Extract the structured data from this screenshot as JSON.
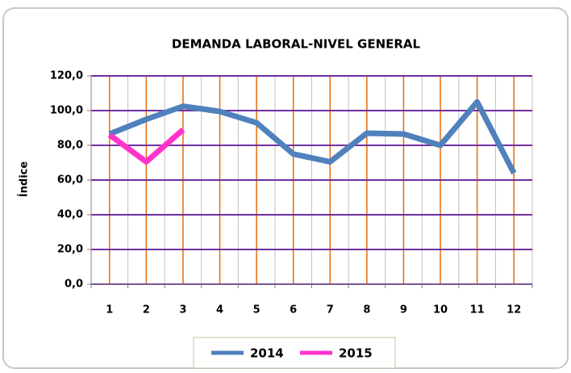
{
  "chart_data": {
    "type": "line",
    "title": "DEMANDA LABORAL-NIVEL GENERAL",
    "y_label": "Índice",
    "categories": [
      "1",
      "2",
      "3",
      "4",
      "5",
      "6",
      "7",
      "8",
      "9",
      "10",
      "11",
      "12"
    ],
    "series": [
      {
        "name": "2014",
        "color": "#4f81bd",
        "values": [
          86.5,
          95,
          102.5,
          99.5,
          93,
          75,
          70.5,
          87,
          86.5,
          80,
          105,
          64
        ]
      },
      {
        "name": "2015",
        "color": "#ff33cc",
        "values": [
          86,
          70.5,
          89,
          null,
          null,
          null,
          null,
          null,
          null,
          null,
          null,
          null
        ]
      }
    ],
    "ylim": [
      0,
      120
    ],
    "yticks": [
      {
        "value": 0,
        "label": "0,0"
      },
      {
        "value": 20,
        "label": "20,0"
      },
      {
        "value": 40,
        "label": "40,0"
      },
      {
        "value": 60,
        "label": "60,0"
      },
      {
        "value": 80,
        "label": "80,0"
      },
      {
        "value": 100,
        "label": "100,0"
      },
      {
        "value": 120,
        "label": "120,0"
      }
    ],
    "grid": true
  }
}
